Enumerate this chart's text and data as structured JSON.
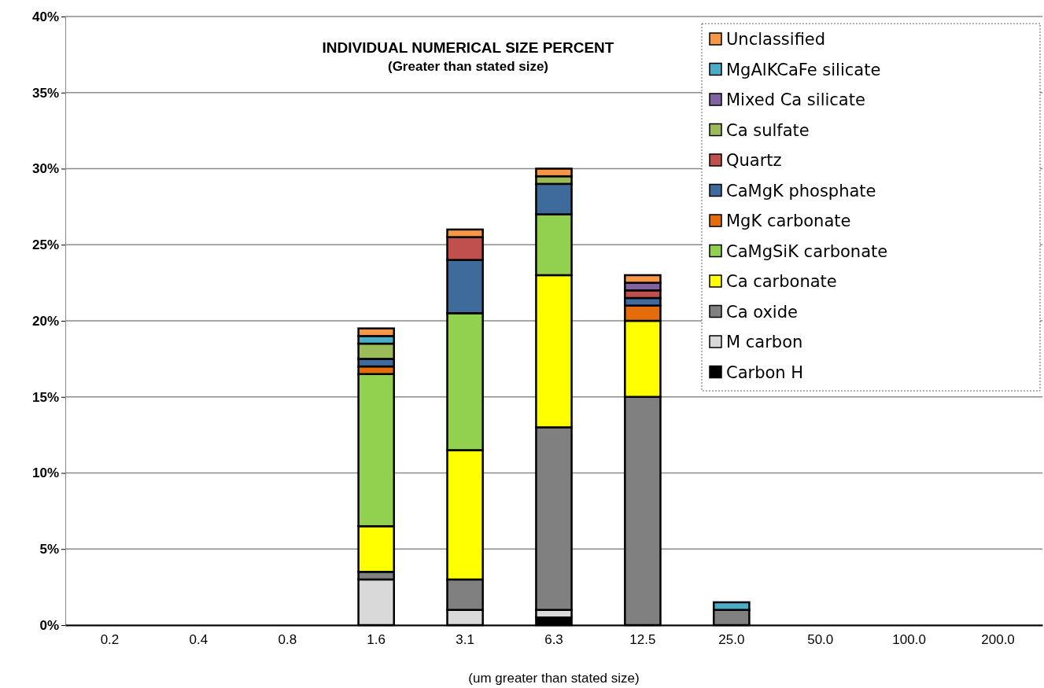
{
  "chart_data": {
    "type": "bar",
    "stacked": true,
    "title": "INDIVIDUAL NUMERICAL SIZE PERCENT",
    "subtitle": "(Greater than stated size)",
    "xlabel": "(um greater than stated size)",
    "categories": [
      "0.2",
      "0.4",
      "0.8",
      "1.6",
      "3.1",
      "6.3",
      "12.5",
      "25.0",
      "50.0",
      "100.0",
      "200.0"
    ],
    "ylim": [
      0,
      40
    ],
    "yticks": [
      {
        "value": 0,
        "label": "0%"
      },
      {
        "value": 5,
        "label": "5%"
      },
      {
        "value": 10,
        "label": "10%"
      },
      {
        "value": 15,
        "label": "15%"
      },
      {
        "value": 20,
        "label": "20%"
      },
      {
        "value": 25,
        "label": "25%"
      },
      {
        "value": 30,
        "label": "30%"
      },
      {
        "value": 35,
        "label": "35%"
      },
      {
        "value": 40,
        "label": "40%"
      }
    ],
    "grid": "y",
    "legend": "top right",
    "series": [
      {
        "name": "Carbon H",
        "color": "#000000",
        "values": [
          null,
          null,
          null,
          null,
          null,
          0.5,
          null,
          null,
          null,
          null,
          null
        ]
      },
      {
        "name": "M carbon",
        "color": "#d9d9d9",
        "values": [
          null,
          null,
          null,
          3,
          1,
          0.5,
          null,
          null,
          null,
          null,
          null
        ]
      },
      {
        "name": "Ca oxide",
        "color": "#808080",
        "values": [
          null,
          null,
          null,
          0.5,
          2,
          12,
          15,
          1,
          null,
          null,
          null
        ]
      },
      {
        "name": "Ca carbonate",
        "color": "#ffff00",
        "values": [
          null,
          null,
          null,
          3,
          8.5,
          10,
          5,
          null,
          null,
          null,
          null
        ]
      },
      {
        "name": "CaMgSiK carbonate",
        "color": "#92d050",
        "values": [
          null,
          null,
          null,
          10,
          9,
          4,
          null,
          null,
          null,
          null,
          null
        ]
      },
      {
        "name": "MgK carbonate",
        "color": "#e46c0a",
        "values": [
          null,
          null,
          null,
          0.5,
          null,
          null,
          1,
          null,
          null,
          null,
          null
        ]
      },
      {
        "name": "CaMgK phosphate",
        "color": "#3f6a9c",
        "values": [
          null,
          null,
          null,
          0.5,
          3.5,
          2,
          0.5,
          null,
          null,
          null,
          null
        ]
      },
      {
        "name": "Quartz",
        "color": "#c0504d",
        "values": [
          null,
          null,
          null,
          null,
          1.5,
          null,
          0.5,
          null,
          null,
          null,
          null
        ]
      },
      {
        "name": "Ca sulfate",
        "color": "#9bbb59",
        "values": [
          null,
          null,
          null,
          1,
          null,
          0.5,
          null,
          null,
          null,
          null,
          null
        ]
      },
      {
        "name": "Mixed Ca silicate",
        "color": "#8064a2",
        "values": [
          null,
          null,
          null,
          null,
          null,
          null,
          0.5,
          null,
          null,
          null,
          null
        ]
      },
      {
        "name": "MgAlKCaFe silicate",
        "color": "#4bacc6",
        "values": [
          null,
          null,
          null,
          0.5,
          null,
          null,
          null,
          0.5,
          null,
          null,
          null
        ]
      },
      {
        "name": "Unclassified",
        "color": "#f79646",
        "values": [
          null,
          null,
          null,
          0.5,
          0.5,
          0.5,
          0.5,
          null,
          null,
          null,
          null
        ]
      }
    ]
  }
}
